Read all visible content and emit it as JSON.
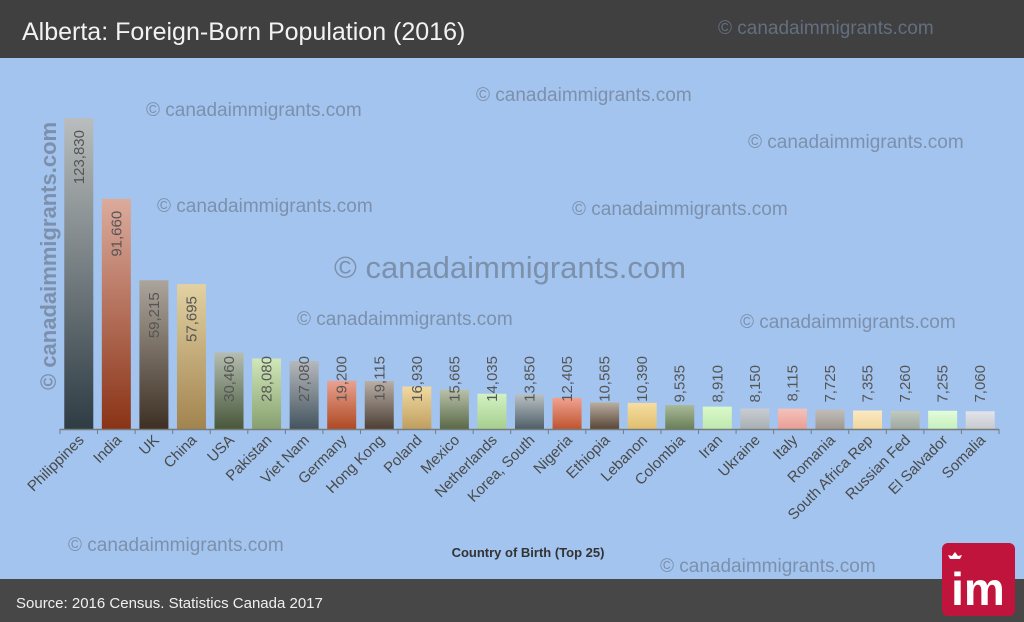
{
  "header": {
    "title": "Alberta: Foreign-Born Population (2016)",
    "bg_color": "#404040"
  },
  "footer": {
    "source": "Source: 2016 Census. Statistics Canada 2017",
    "bg_color": "#474747"
  },
  "watermark": "© canadaimmigrants.com",
  "logo": {
    "text": "im",
    "color": "#c0143c"
  },
  "plot_bg_color": "#a3c4ee",
  "chart_data": {
    "type": "bar",
    "title": "Alberta: Foreign-Born Population (2016)",
    "xlabel": "Country of Birth (Top 25)",
    "ylabel": "",
    "grid": false,
    "legend": "none",
    "ylim": [
      0,
      123830
    ],
    "categories": [
      "Philippines",
      "India",
      "UK",
      "China",
      "USA",
      "Pakistan",
      "Viet Nam",
      "Germany",
      "Hong Kong",
      "Poland",
      "Mexico",
      "Netherlands",
      "Korea, South",
      "Nigeria",
      "Ethiopia",
      "Lebanon",
      "Colombia",
      "Iran",
      "Ukraine",
      "Italy",
      "Romania",
      "South Africa Rep",
      "Russian Fed",
      "El Salvador",
      "Somalia"
    ],
    "values": [
      123830,
      91660,
      59215,
      57695,
      30460,
      28080,
      27080,
      19200,
      19115,
      16930,
      15665,
      14035,
      13850,
      12405,
      10565,
      10390,
      9535,
      8910,
      8150,
      8115,
      7725,
      7355,
      7260,
      7255,
      7060
    ],
    "data_labels": [
      "123,830",
      "91,660",
      "59,215",
      "57,695",
      "30,460",
      "28,080",
      "27,080",
      "19,200",
      "19,115",
      "16,930",
      "15,665",
      "14,035",
      "13,850",
      "12,405",
      "10,565",
      "10,390",
      "9,535",
      "8,910",
      "8,150",
      "8,115",
      "7,725",
      "7,355",
      "7,260",
      "7,255",
      "7,060"
    ],
    "bar_colors": [
      [
        "#b9bdbd",
        "#2e3c44"
      ],
      [
        "#dcab9d",
        "#8a3316"
      ],
      [
        "#aca59c",
        "#3d2f23"
      ],
      [
        "#e2d1a2",
        "#a2844f"
      ],
      [
        "#b5bdb0",
        "#48583a"
      ],
      [
        "#d0e7b9",
        "#87a06e"
      ],
      [
        "#b5b9bd",
        "#44545e"
      ],
      [
        "#e9a290",
        "#af4923"
      ],
      [
        "#b9afa7",
        "#4d3f34"
      ],
      [
        "#f1d9a1",
        "#bf9f5f"
      ],
      [
        "#b9c1a9",
        "#596947"
      ],
      [
        "#d2f2c2",
        "#a7cf8f"
      ],
      [
        "#b9c1c5",
        "#4f5f67"
      ],
      [
        "#f1a191",
        "#bf542f"
      ],
      [
        "#b9ada1",
        "#594737"
      ],
      [
        "#f6dda1",
        "#dfbf6f"
      ],
      [
        "#a9b999",
        "#697f57"
      ],
      [
        "#d9f9c9",
        "#bfe9af"
      ],
      [
        "#c9cdd1",
        "#a7afb3"
      ],
      [
        "#f6c1b9",
        "#e79f97"
      ],
      [
        "#c1bdb9",
        "#9f978f"
      ],
      [
        "#fbe9c1",
        "#efd79f"
      ],
      [
        "#c1c9c1",
        "#9fa99f"
      ],
      [
        "#e1fdd9",
        "#c7efbf"
      ],
      [
        "#e1e5e9",
        "#c7cbcf"
      ]
    ]
  }
}
